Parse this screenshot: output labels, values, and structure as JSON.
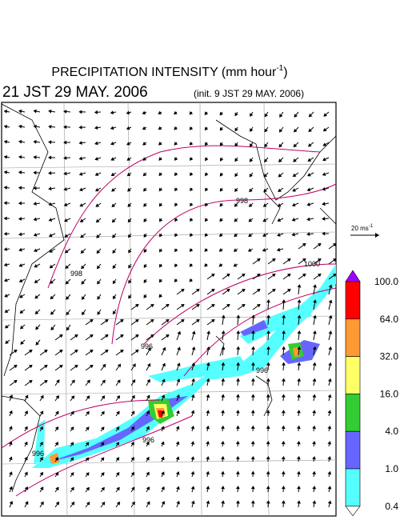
{
  "header": {
    "title": "PRECIPITATION INTENSITY (mm hour",
    "title_exponent": "-1",
    "title_close": ")",
    "valid_time": "21 JST 29 MAY. 2006",
    "init_time": "(init. 9 JST 29 MAY. 2006)"
  },
  "reference_vector": {
    "label": "20 ms",
    "exponent": "-1"
  },
  "contour_labels": [
    "998",
    "998",
    "1000",
    "996",
    "996",
    "996",
    "996"
  ],
  "colorbar": {
    "top_color": "#a000ff",
    "bottom_color": "#ffffff",
    "levels": [
      {
        "label": "100.0",
        "color": "#ff0000"
      },
      {
        "label": "64.0",
        "color": "#ff9933"
      },
      {
        "label": "32.0",
        "color": "#ffff66"
      },
      {
        "label": "16.0",
        "color": "#33cc33"
      },
      {
        "label": "4.0",
        "color": "#6666ff"
      },
      {
        "label": "1.0",
        "color": "#55ffff"
      },
      {
        "label": "0.4",
        "color": null
      }
    ]
  }
}
